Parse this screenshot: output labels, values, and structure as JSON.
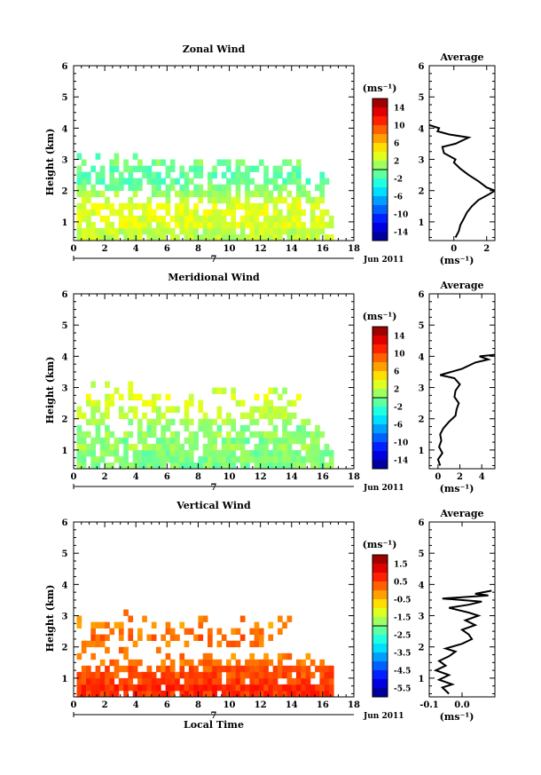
{
  "chart_data": [
    {
      "type": "heatmap",
      "title": "Zonal Wind",
      "xlabel": "",
      "ylabel": "Height (km)",
      "xlim": [
        0,
        18
      ],
      "ylim": [
        0.4,
        6
      ],
      "xticks": [
        0,
        2,
        4,
        6,
        8,
        10,
        12,
        14,
        16,
        18
      ],
      "yticks": [
        1,
        2,
        3,
        4,
        5,
        6
      ],
      "date_marker": {
        "label": "7",
        "date": "Jun 2011"
      },
      "colorbar": {
        "unit": "(ms⁻¹)",
        "ticks": [
          "14",
          "10",
          "6",
          "2",
          "-2",
          "-6",
          "-10",
          "-14"
        ],
        "vmin": -16,
        "vmax": 16
      },
      "data_extent": {
        "x_start": 0.2,
        "x_end": 16.7,
        "rows": [
          {
            "height": 0.5,
            "x_end": 16.7,
            "fill": 0.85,
            "value": 2
          },
          {
            "height": 0.7,
            "x_end": 16.7,
            "fill": 0.85,
            "value": 2
          },
          {
            "height": 0.9,
            "x_end": 16.6,
            "fill": 0.85,
            "value": 3
          },
          {
            "height": 1.1,
            "x_end": 16.5,
            "fill": 0.8,
            "value": 3
          },
          {
            "height": 1.3,
            "x_end": 16.4,
            "fill": 0.7,
            "value": 3
          },
          {
            "height": 1.5,
            "x_end": 16.2,
            "fill": 0.65,
            "value": 3
          },
          {
            "height": 1.7,
            "x_end": 16.0,
            "fill": 0.6,
            "value": 2
          },
          {
            "height": 1.9,
            "x_end": 16.0,
            "fill": 0.65,
            "value": 1
          },
          {
            "height": 2.1,
            "x_end": 16.3,
            "fill": 0.7,
            "value": 0
          },
          {
            "height": 2.3,
            "x_end": 16.3,
            "fill": 0.7,
            "value": -1
          },
          {
            "height": 2.5,
            "x_end": 16.0,
            "fill": 0.6,
            "value": -1
          },
          {
            "height": 2.7,
            "x_end": 15.5,
            "fill": 0.55,
            "value": -1
          },
          {
            "height": 2.9,
            "x_end": 14.5,
            "fill": 0.35,
            "value": 0
          },
          {
            "height": 3.1,
            "x_end": 4.0,
            "fill": 0.2,
            "value": -1
          }
        ]
      },
      "profile": {
        "title": "Average",
        "xlabel": "(ms⁻¹)",
        "xlim": [
          -1.5,
          2.5
        ],
        "xticks": [
          "0",
          "2"
        ],
        "points": [
          [
            0.1,
            0.5
          ],
          [
            0.3,
            0.7
          ],
          [
            0.4,
            0.9
          ],
          [
            0.6,
            1.1
          ],
          [
            0.8,
            1.3
          ],
          [
            1.1,
            1.5
          ],
          [
            1.5,
            1.7
          ],
          [
            2.2,
            1.9
          ],
          [
            2.5,
            2.0
          ],
          [
            2.0,
            2.1
          ],
          [
            1.5,
            2.3
          ],
          [
            0.9,
            2.5
          ],
          [
            0.4,
            2.7
          ],
          [
            0.0,
            2.9
          ],
          [
            0.1,
            3.0
          ],
          [
            -0.6,
            3.2
          ],
          [
            -0.7,
            3.4
          ],
          [
            0.1,
            3.5
          ],
          [
            0.9,
            3.7
          ],
          [
            -0.3,
            3.8
          ],
          [
            -1.0,
            3.9
          ],
          [
            -0.9,
            4.0
          ],
          [
            -1.5,
            4.1
          ]
        ]
      }
    },
    {
      "type": "heatmap",
      "title": "Meridional Wind",
      "xlabel": "",
      "ylabel": "Height (km)",
      "xlim": [
        0,
        18
      ],
      "ylim": [
        0.4,
        6
      ],
      "xticks": [
        0,
        2,
        4,
        6,
        8,
        10,
        12,
        14,
        16,
        18
      ],
      "yticks": [
        1,
        2,
        3,
        4,
        5,
        6
      ],
      "date_marker": {
        "label": "7",
        "date": "Jun 2011"
      },
      "colorbar": {
        "unit": "(ms⁻¹)",
        "ticks": [
          "14",
          "10",
          "6",
          "2",
          "-2",
          "-6",
          "-10",
          "-14"
        ],
        "vmin": -16,
        "vmax": 16
      },
      "data_extent": {
        "x_start": 0.2,
        "x_end": 16.7,
        "rows": [
          {
            "height": 0.5,
            "x_end": 16.6,
            "fill": 0.9,
            "value": 0
          },
          {
            "height": 0.7,
            "x_end": 16.6,
            "fill": 0.9,
            "value": 0
          },
          {
            "height": 0.9,
            "x_end": 16.6,
            "fill": 0.85,
            "value": 0
          },
          {
            "height": 1.1,
            "x_end": 16.5,
            "fill": 0.8,
            "value": 1
          },
          {
            "height": 1.3,
            "x_end": 16.4,
            "fill": 0.75,
            "value": 0
          },
          {
            "height": 1.5,
            "x_end": 16.0,
            "fill": 0.7,
            "value": 1
          },
          {
            "height": 1.7,
            "x_end": 15.8,
            "fill": 0.55,
            "value": 0
          },
          {
            "height": 1.9,
            "x_end": 15.0,
            "fill": 0.5,
            "value": 1
          },
          {
            "height": 2.1,
            "x_end": 14.5,
            "fill": 0.45,
            "value": 2
          },
          {
            "height": 2.3,
            "x_end": 14.0,
            "fill": 0.45,
            "value": 2
          },
          {
            "height": 2.5,
            "x_end": 14.5,
            "fill": 0.4,
            "value": 3
          },
          {
            "height": 2.7,
            "x_end": 14.5,
            "fill": 0.3,
            "value": 3
          },
          {
            "height": 2.9,
            "x_end": 13.5,
            "fill": 0.2,
            "value": 2
          },
          {
            "height": 3.1,
            "x_end": 5.0,
            "fill": 0.15,
            "value": 2
          }
        ]
      },
      "profile": {
        "title": "Average",
        "xlabel": "(ms⁻¹)",
        "xlim": [
          -0.8,
          5.2
        ],
        "xticks": [
          "0",
          "2",
          "4"
        ],
        "points": [
          [
            0.2,
            0.5
          ],
          [
            0.0,
            0.7
          ],
          [
            0.4,
            0.9
          ],
          [
            0.1,
            1.1
          ],
          [
            0.3,
            1.3
          ],
          [
            0.2,
            1.5
          ],
          [
            0.5,
            1.7
          ],
          [
            1.0,
            1.9
          ],
          [
            1.6,
            2.1
          ],
          [
            1.7,
            2.3
          ],
          [
            1.9,
            2.5
          ],
          [
            1.5,
            2.7
          ],
          [
            1.6,
            2.9
          ],
          [
            2.0,
            3.1
          ],
          [
            1.5,
            3.3
          ],
          [
            0.2,
            3.4
          ],
          [
            2.2,
            3.6
          ],
          [
            3.4,
            3.8
          ],
          [
            4.6,
            3.9
          ],
          [
            3.8,
            4.0
          ],
          [
            5.2,
            4.05
          ]
        ]
      }
    },
    {
      "type": "heatmap",
      "title": "Vertical Wind",
      "xlabel": "Local Time",
      "ylabel": "Height (km)",
      "xlim": [
        0,
        18
      ],
      "ylim": [
        0.4,
        6
      ],
      "xticks": [
        0,
        2,
        4,
        6,
        8,
        10,
        12,
        14,
        16,
        18
      ],
      "yticks": [
        1,
        2,
        3,
        4,
        5,
        6
      ],
      "date_marker": {
        "label": "7",
        "date": "Jun 2011"
      },
      "colorbar": {
        "unit": "(ms⁻¹)",
        "ticks": [
          "1.5",
          "0.5",
          "-0.5",
          "-1.5",
          "-2.5",
          "-3.5",
          "-4.5",
          "-5.5"
        ],
        "vmin": -6,
        "vmax": 2
      },
      "data_extent": {
        "x_start": 0.2,
        "x_end": 16.7,
        "rows": [
          {
            "height": 0.5,
            "x_end": 16.6,
            "fill": 0.95,
            "value": 0.6
          },
          {
            "height": 0.7,
            "x_end": 16.6,
            "fill": 0.95,
            "value": 0.6
          },
          {
            "height": 0.9,
            "x_end": 16.6,
            "fill": 0.9,
            "value": 0.5
          },
          {
            "height": 1.1,
            "x_end": 16.5,
            "fill": 0.9,
            "value": 0.4
          },
          {
            "height": 1.3,
            "x_end": 16.5,
            "fill": 0.85,
            "value": 0.3
          },
          {
            "height": 1.5,
            "x_end": 16.0,
            "fill": 0.45,
            "value": 0.1
          },
          {
            "height": 1.7,
            "x_end": 15.0,
            "fill": 0.35,
            "value": 0.0
          },
          {
            "height": 1.9,
            "x_end": 12.5,
            "fill": 0.3,
            "value": 0.1
          },
          {
            "height": 2.1,
            "x_end": 12.5,
            "fill": 0.35,
            "value": 0.1
          },
          {
            "height": 2.3,
            "x_end": 13.0,
            "fill": 0.3,
            "value": 0.2
          },
          {
            "height": 2.5,
            "x_end": 13.5,
            "fill": 0.3,
            "value": 0.0
          },
          {
            "height": 2.7,
            "x_end": 14.5,
            "fill": 0.3,
            "value": -0.1
          },
          {
            "height": 2.9,
            "x_end": 14.0,
            "fill": 0.15,
            "value": 0.0
          },
          {
            "height": 3.1,
            "x_end": 4.0,
            "fill": 0.15,
            "value": 0.1
          }
        ]
      },
      "profile": {
        "title": "Average",
        "xlabel": "(ms⁻¹)",
        "xlim": [
          -0.1,
          0.1
        ],
        "xticks": [
          "-0.1",
          "0.0"
        ],
        "points": [
          [
            -0.04,
            0.5
          ],
          [
            -0.06,
            0.7
          ],
          [
            -0.03,
            0.8
          ],
          [
            -0.07,
            0.95
          ],
          [
            -0.04,
            1.1
          ],
          [
            -0.08,
            1.25
          ],
          [
            -0.05,
            1.4
          ],
          [
            -0.07,
            1.55
          ],
          [
            -0.04,
            1.7
          ],
          [
            -0.02,
            1.85
          ],
          [
            -0.05,
            1.95
          ],
          [
            0.0,
            2.1
          ],
          [
            0.03,
            2.25
          ],
          [
            0.02,
            2.4
          ],
          [
            0.0,
            2.55
          ],
          [
            0.04,
            2.7
          ],
          [
            0.01,
            2.85
          ],
          [
            0.05,
            3.0
          ],
          [
            0.02,
            3.1
          ],
          [
            -0.04,
            3.25
          ],
          [
            0.02,
            3.35
          ],
          [
            0.06,
            3.45
          ],
          [
            -0.06,
            3.55
          ],
          [
            0.08,
            3.65
          ],
          [
            0.04,
            3.7
          ],
          [
            0.09,
            3.8
          ]
        ]
      }
    }
  ]
}
